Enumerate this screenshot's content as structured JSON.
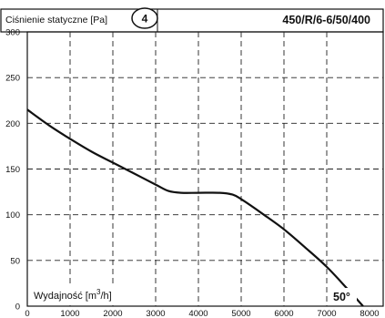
{
  "chart_data": {
    "type": "line",
    "title": "",
    "ylabel": "Ciśnienie statyczne [Pa]",
    "xlabel_parts": {
      "base": "Wydajność [m",
      "sup": "3",
      "tail": "/h]"
    },
    "badge": "4",
    "model": "450/R/6-6/50/400",
    "blade_angle": "50°",
    "xlim": [
      0,
      8000
    ],
    "ylim": [
      0,
      300
    ],
    "x_ticks": [
      "0",
      "1000",
      "2000",
      "3000",
      "4000",
      "5000",
      "6000",
      "7000",
      "8000"
    ],
    "y_ticks": [
      "0",
      "50",
      "100",
      "150",
      "200",
      "250",
      "300"
    ],
    "grid": true,
    "series": [
      {
        "x": [
          0,
          500,
          1000,
          1500,
          2000,
          2500,
          3000,
          3300,
          3600,
          4000,
          4500,
          4800,
          5000,
          5500,
          6000,
          6500,
          7000,
          7500,
          7850
        ],
        "y": [
          215,
          198,
          183,
          169,
          157,
          145,
          133,
          126,
          124,
          124,
          124,
          122,
          117,
          101,
          84,
          64,
          43,
          18,
          0
        ]
      }
    ]
  }
}
